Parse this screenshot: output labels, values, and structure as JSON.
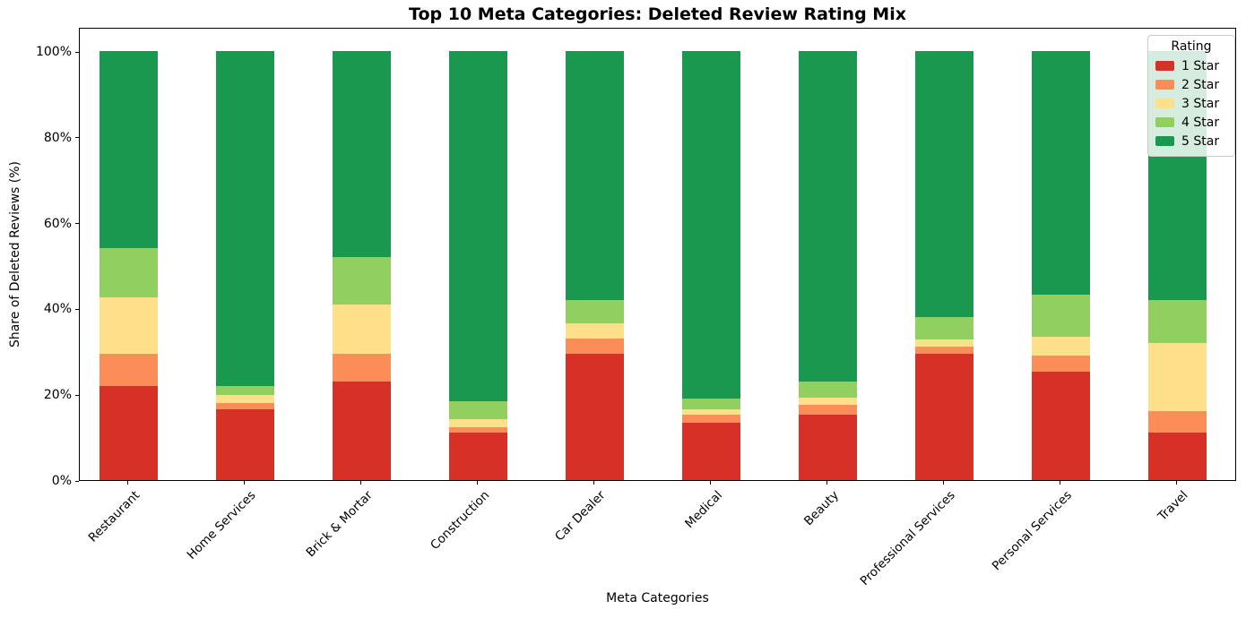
{
  "chart_data": {
    "type": "bar",
    "stacked": true,
    "percent_stacked": true,
    "title": "Top 10 Meta Categories: Deleted Review Rating Mix",
    "xlabel": "Meta Categories",
    "ylabel": "Share of Deleted Reviews (%)",
    "grid": false,
    "legend": {
      "title": "Rating",
      "position": "upper right"
    },
    "ylim": [
      0,
      105.6
    ],
    "yticks": [
      {
        "value": 0,
        "label": "0%"
      },
      {
        "value": 20,
        "label": "20%"
      },
      {
        "value": 40,
        "label": "40%"
      },
      {
        "value": 60,
        "label": "60%"
      },
      {
        "value": 80,
        "label": "80%"
      },
      {
        "value": 100,
        "label": "100%"
      }
    ],
    "categories": [
      "Restaurant",
      "Home Services",
      "Brick & Mortar",
      "Construction",
      "Car Dealer",
      "Medical",
      "Beauty",
      "Professional Services",
      "Personal Services",
      "Travel"
    ],
    "series": [
      {
        "name": "1 Star",
        "color": "#d73027",
        "values": [
          22.0,
          16.5,
          23.0,
          11.0,
          29.5,
          13.3,
          15.2,
          29.4,
          25.3,
          11.0
        ]
      },
      {
        "name": "2 Star",
        "color": "#fc8d59",
        "values": [
          7.5,
          1.5,
          6.5,
          1.4,
          3.5,
          1.9,
          2.3,
          1.8,
          3.7,
          5.0
        ]
      },
      {
        "name": "3 Star",
        "color": "#fee08b",
        "values": [
          13.0,
          1.8,
          11.5,
          1.8,
          3.5,
          1.4,
          1.8,
          1.6,
          4.5,
          16.0
        ]
      },
      {
        "name": "4 Star",
        "color": "#91cf60",
        "values": [
          11.5,
          2.2,
          11.0,
          4.1,
          5.5,
          2.3,
          3.7,
          5.3,
          9.8,
          10.0
        ]
      },
      {
        "name": "5 Star",
        "color": "#1a9850",
        "values": [
          46.0,
          78.0,
          48.0,
          81.7,
          58.0,
          81.1,
          77.0,
          61.9,
          56.7,
          58.0
        ]
      }
    ]
  }
}
